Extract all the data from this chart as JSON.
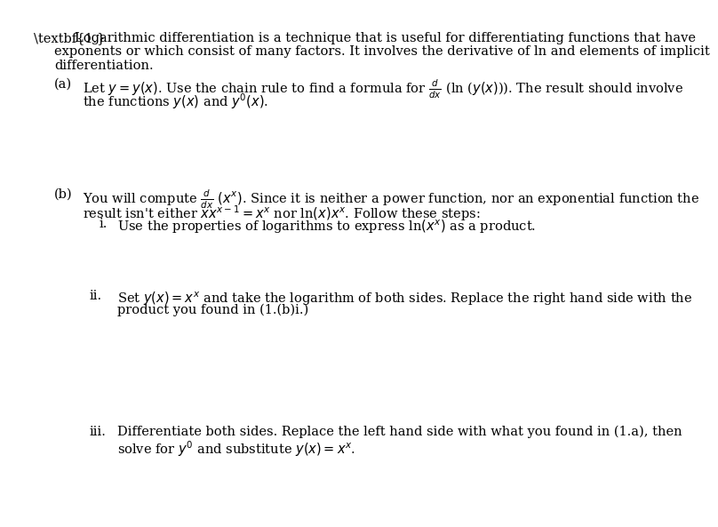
{
  "background_color": "#ffffff",
  "text_color": "#000000",
  "font_size": 10.5,
  "title_num": "1.",
  "title_text": "Logarithmic differentiation is a technique that is useful for differentiating functions that have\nexponents or which consist of many factors. It involves the derivative of ln and elements of implicit\ndifferentiation.",
  "part_a_label": "(a)",
  "part_a_text": "Let $y = y(x)$. Use the chain rule to find a formula for $\\frac{d}{dx}$ (ln ($y(x)$)). The result should involve\nthe functions $y(x)$ and $y'(x)$.",
  "part_b_label": "(b)",
  "part_b_text": "You will compute $\\frac{d}{dx}$ $(x^x)$. Since it is neither a power function, nor an exponential function the\nresult isn't either $xx^{x-1} = x^x$ nor ln$(x)x^x$. Follow these steps:",
  "part_b_i_label": "i.",
  "part_b_i_text": "Use the properties of logarithms to express ln$(x^x)$ as a product.",
  "part_b_ii_label": "ii.",
  "part_b_ii_text": "Set $y(x) = x^x$ and take the logarithm of both sides. Replace the right hand side with the\nproduct you found in (1.(b)i.)",
  "part_b_iii_label": "iii.",
  "part_b_iii_text": "Differentiate both sides. Replace the left hand side with what you found in (1.a), then\nsolve for $y'$ and substitute $y(x) = x^x$."
}
